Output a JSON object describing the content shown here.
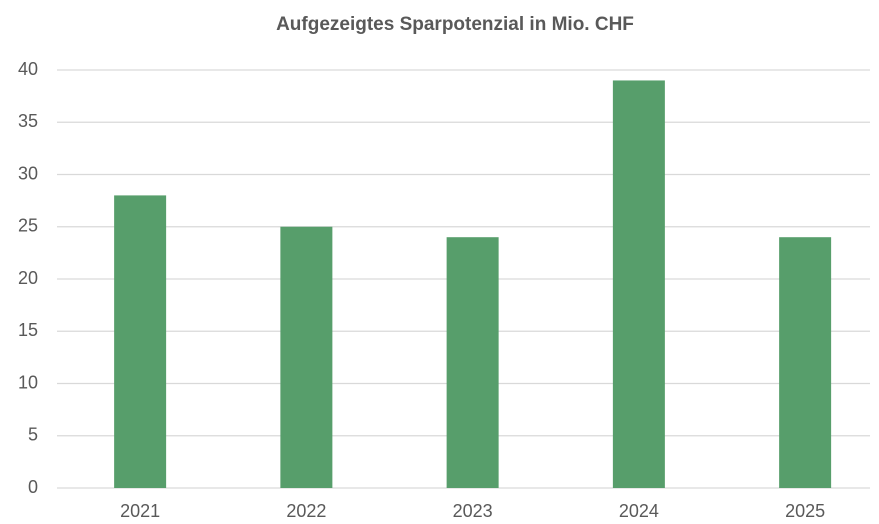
{
  "chart_data": {
    "type": "bar",
    "title": "Aufgezeigtes Sparpotenzial in Mio. CHF",
    "categories": [
      "2021",
      "2022",
      "2023",
      "2024",
      "2025"
    ],
    "values": [
      28,
      25,
      24,
      39,
      24
    ],
    "color": "#579e6b",
    "ylim": [
      0,
      40
    ],
    "yticks": [
      0,
      5,
      10,
      15,
      20,
      25,
      30,
      35,
      40
    ],
    "grid": true
  }
}
